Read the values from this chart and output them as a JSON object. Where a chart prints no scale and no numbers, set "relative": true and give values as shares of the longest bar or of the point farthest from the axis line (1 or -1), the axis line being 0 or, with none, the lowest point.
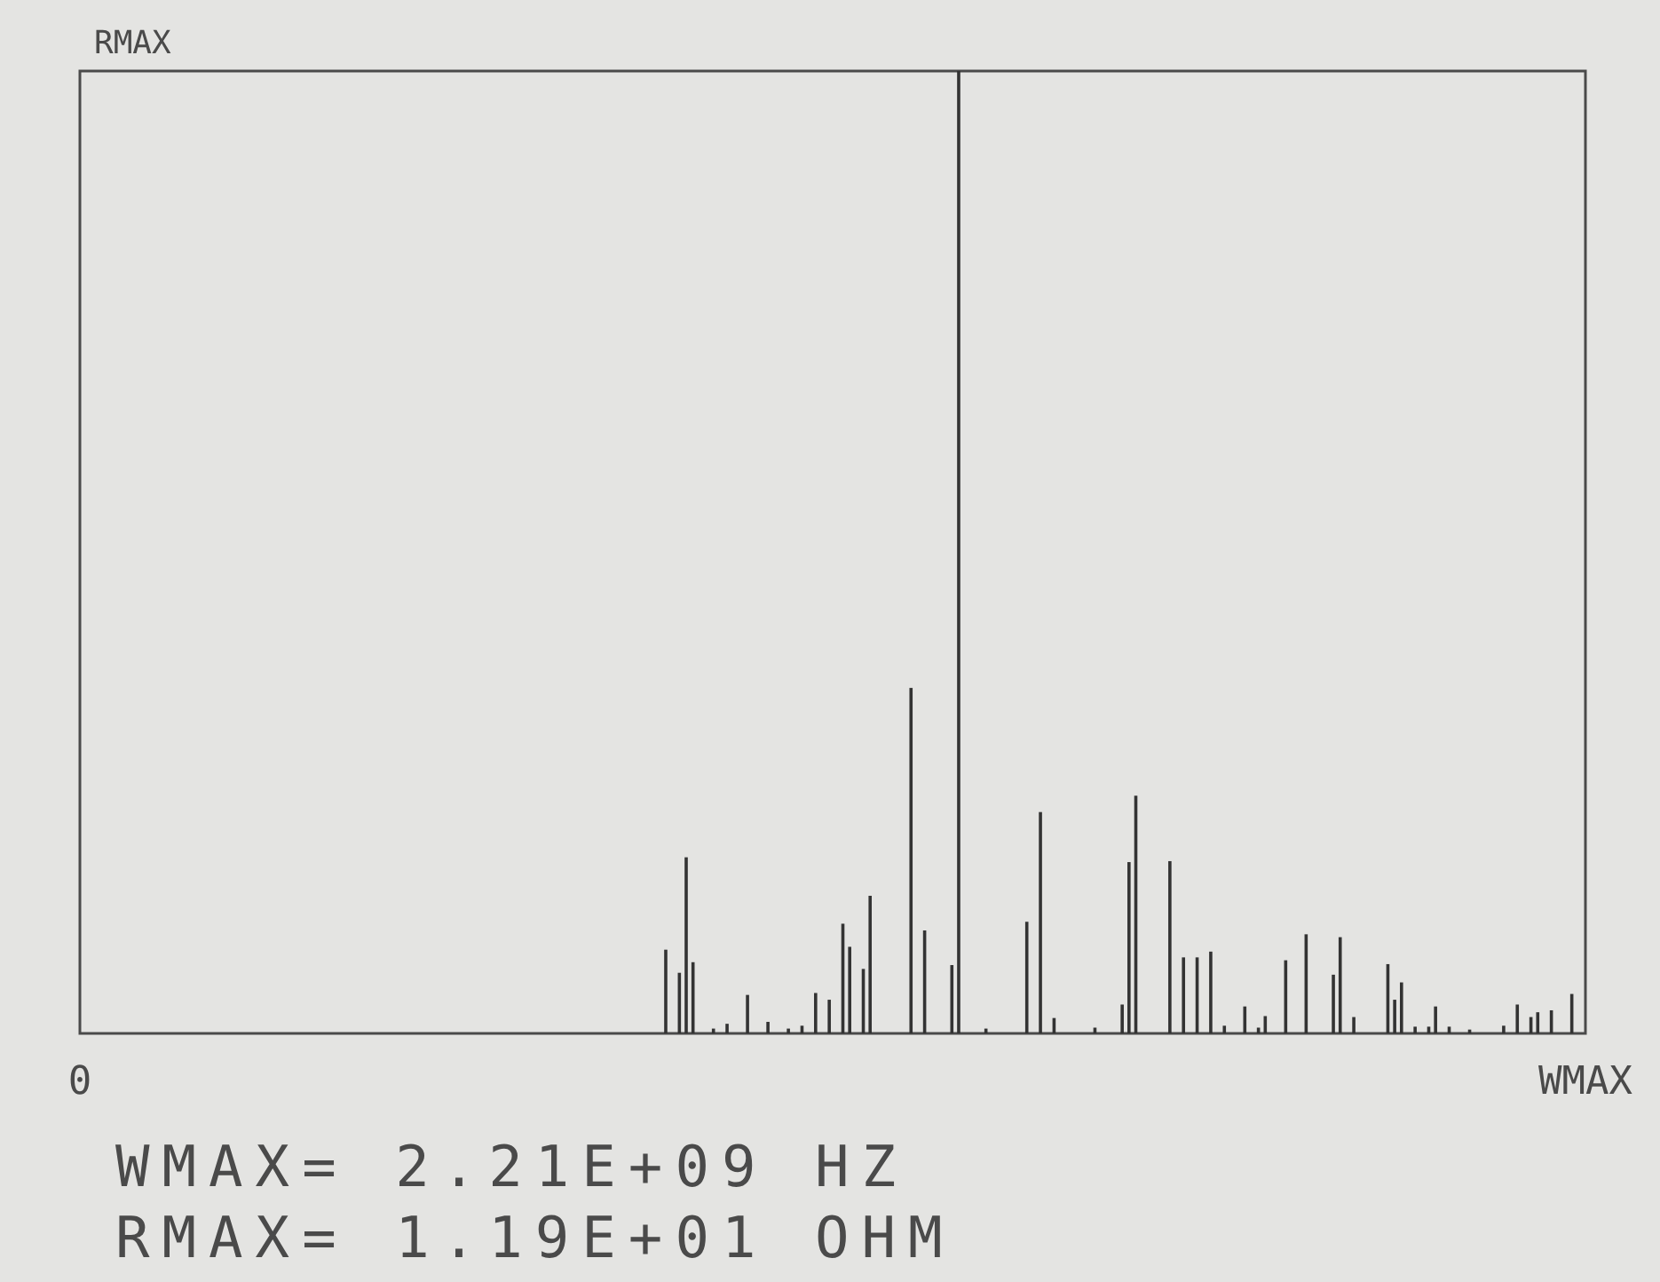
{
  "chart_data": {
    "type": "bar",
    "relative": true,
    "ylabel": "RMAX",
    "color": "#333333",
    "categories": [
      "0",
      null,
      null,
      null,
      null,
      null,
      null,
      null,
      null,
      null,
      null,
      null,
      null,
      null,
      null,
      null,
      null,
      null,
      null,
      null,
      null,
      null,
      null,
      null,
      null,
      null,
      null,
      null,
      null,
      null,
      null,
      null,
      null,
      null,
      null,
      null,
      null,
      null,
      null,
      null,
      null,
      null,
      null,
      null,
      null,
      null,
      null,
      null,
      null,
      null,
      null,
      null,
      null,
      null,
      null,
      null,
      null,
      null,
      null,
      null,
      null,
      null,
      null,
      null,
      null,
      null,
      null,
      null,
      null,
      null,
      null,
      null,
      null,
      null,
      null,
      null,
      null,
      null,
      null,
      null,
      null,
      null,
      null,
      null,
      null,
      null,
      null,
      null,
      null,
      null,
      null,
      null,
      null,
      null,
      null,
      null,
      null,
      null,
      null,
      null,
      null,
      null,
      null,
      null,
      null,
      null,
      null,
      null,
      null,
      null,
      null,
      null,
      null,
      null,
      null,
      null,
      null,
      null,
      null,
      null,
      null,
      null,
      null,
      null,
      null,
      null,
      null,
      null,
      null,
      null,
      null,
      null,
      null,
      null,
      null,
      null,
      null,
      null,
      null,
      null,
      null,
      null,
      null,
      null,
      null,
      null,
      null,
      null,
      null,
      null,
      null,
      null,
      null,
      null,
      null,
      null,
      null,
      null,
      null,
      null,
      null,
      null,
      null,
      null,
      null,
      null,
      null,
      null,
      null,
      null,
      null,
      null,
      null,
      null,
      null,
      null,
      null,
      null,
      null,
      null,
      null,
      null,
      null,
      null,
      null,
      null,
      null,
      null,
      null,
      null,
      null,
      null,
      null,
      null,
      null,
      null,
      null,
      null,
      null,
      null,
      null,
      null,
      null,
      null,
      null,
      null,
      null,
      null,
      null,
      null,
      null,
      null,
      null,
      null,
      null,
      null,
      null,
      null,
      null,
      null,
      null,
      "WMAX"
    ],
    "values": [
      null,
      null,
      null,
      null,
      null,
      null,
      null,
      null,
      null,
      null,
      null,
      null,
      null,
      null,
      null,
      null,
      null,
      null,
      null,
      null,
      null,
      null,
      null,
      null,
      null,
      null,
      null,
      null,
      null,
      null,
      null,
      null,
      null,
      null,
      null,
      null,
      null,
      null,
      null,
      null,
      null,
      null,
      null,
      null,
      null,
      null,
      null,
      null,
      null,
      null,
      null,
      null,
      null,
      null,
      null,
      null,
      null,
      null,
      null,
      null,
      null,
      null,
      null,
      null,
      null,
      null,
      null,
      null,
      null,
      null,
      null,
      null,
      null,
      null,
      null,
      null,
      null,
      null,
      null,
      null,
      null,
      null,
      null,
      null,
      null,
      null,
      0.087,
      null,
      0.063,
      0.183,
      0.074,
      null,
      null,
      0.005,
      null,
      0.01,
      null,
      null,
      0.04,
      null,
      null,
      0.012,
      null,
      null,
      0.005,
      null,
      0.008,
      null,
      0.042,
      null,
      0.035,
      null,
      0.114,
      0.09,
      null,
      0.067,
      0.143,
      null,
      null,
      null,
      null,
      null,
      0.359,
      null,
      0.107,
      null,
      null,
      null,
      0.071,
      1,
      null,
      null,
      null,
      0.005,
      null,
      null,
      null,
      null,
      null,
      0.116,
      null,
      0.23,
      null,
      0.016,
      null,
      null,
      null,
      null,
      null,
      0.006,
      null,
      null,
      null,
      0.03,
      0.178,
      0.247,
      null,
      null,
      null,
      null,
      0.179,
      null,
      0.079,
      null,
      0.079,
      null,
      0.085,
      null,
      0.008,
      null,
      null,
      0.028,
      null,
      0.006,
      0.018,
      null,
      null,
      0.076,
      null,
      null,
      0.103,
      null,
      null,
      null,
      0.061,
      0.1,
      null,
      0.017,
      null,
      null,
      null,
      null,
      0.072,
      0.035,
      0.053,
      null,
      0.007,
      null,
      0.007,
      0.028,
      null,
      0.007,
      null,
      null,
      0.004,
      null,
      null,
      null,
      null,
      0.008,
      null,
      0.03,
      null,
      0.017,
      0.022,
      null,
      0.024,
      null,
      null,
      0.041,
      null,
      null
    ],
    "annotations": [
      "WMAX= 2.21E+09 HZ",
      "RMAX= 1.19E+01 OHM"
    ]
  }
}
